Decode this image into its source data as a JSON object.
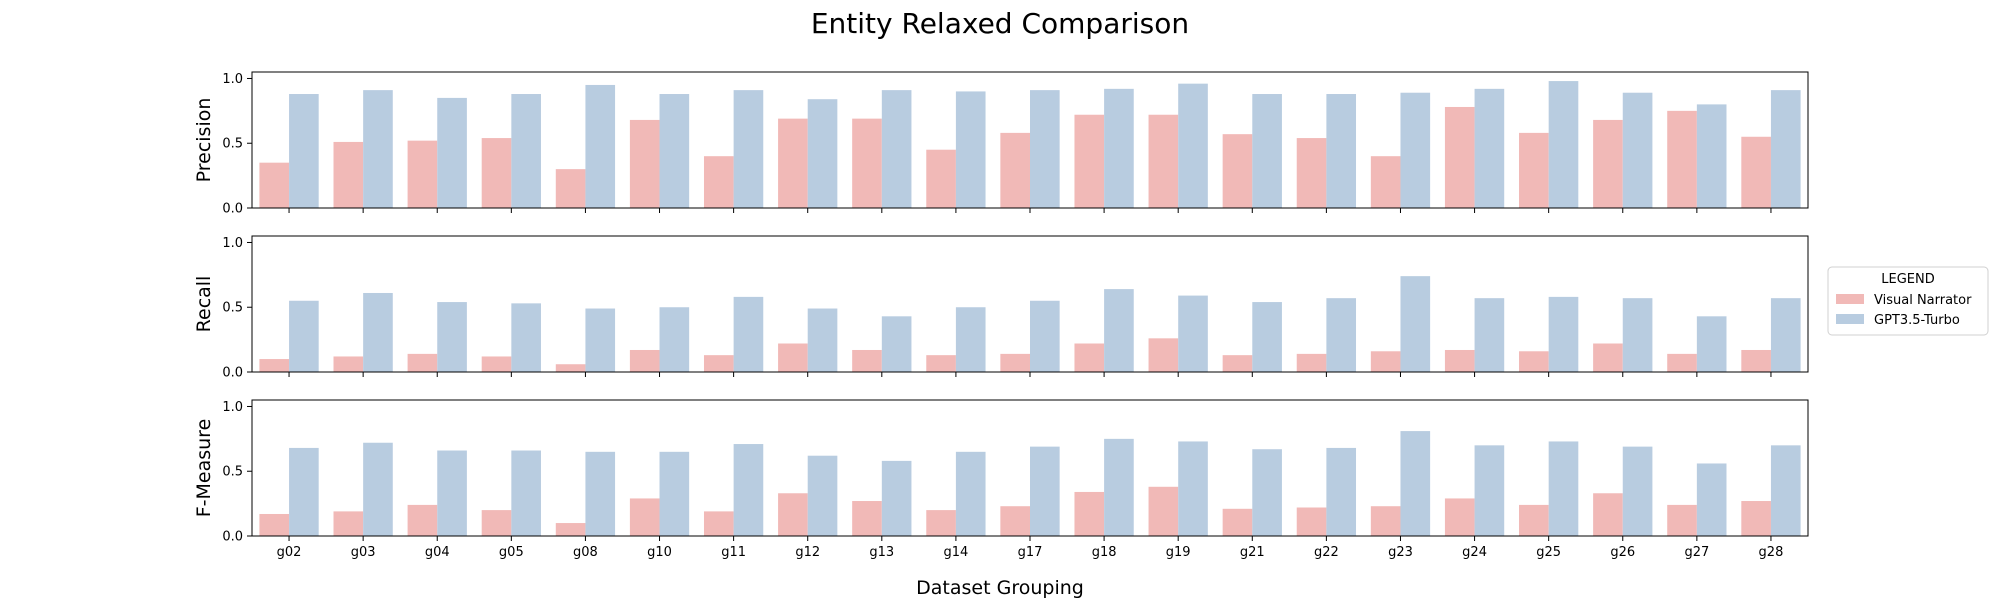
{
  "chart_data": {
    "type": "bar",
    "title": "Entity Relaxed Comparison",
    "xlabel": "Dataset Grouping",
    "categories": [
      "g02",
      "g03",
      "g04",
      "g05",
      "g08",
      "g10",
      "g11",
      "g12",
      "g13",
      "g14",
      "g17",
      "g18",
      "g19",
      "g21",
      "g22",
      "g23",
      "g24",
      "g25",
      "g26",
      "g27",
      "g28"
    ],
    "ylim": [
      0,
      1.05
    ],
    "yticks": [
      "0.0",
      "0.5",
      "1.0"
    ],
    "grid": false,
    "legend": {
      "title": "LEGEND",
      "placement": "right",
      "entries": [
        "Visual Narrator",
        "GPT3.5-Turbo"
      ]
    },
    "colors": {
      "Visual Narrator": "#f1b9b7",
      "GPT3.5-Turbo": "#b8cce0"
    },
    "panels": [
      {
        "ylabel": "Precision",
        "series": [
          {
            "name": "Visual Narrator",
            "values": [
              0.35,
              0.51,
              0.52,
              0.54,
              0.3,
              0.68,
              0.4,
              0.69,
              0.69,
              0.45,
              0.58,
              0.72,
              0.72,
              0.57,
              0.54,
              0.4,
              0.78,
              0.58,
              0.68,
              0.75,
              0.55
            ]
          },
          {
            "name": "GPT3.5-Turbo",
            "values": [
              0.88,
              0.91,
              0.85,
              0.88,
              0.95,
              0.88,
              0.91,
              0.84,
              0.91,
              0.9,
              0.91,
              0.92,
              0.96,
              0.88,
              0.88,
              0.89,
              0.92,
              0.98,
              0.89,
              0.8,
              0.91
            ]
          }
        ]
      },
      {
        "ylabel": "Recall",
        "series": [
          {
            "name": "Visual Narrator",
            "values": [
              0.1,
              0.12,
              0.14,
              0.12,
              0.06,
              0.17,
              0.13,
              0.22,
              0.17,
              0.13,
              0.14,
              0.22,
              0.26,
              0.13,
              0.14,
              0.16,
              0.17,
              0.16,
              0.22,
              0.14,
              0.17
            ]
          },
          {
            "name": "GPT3.5-Turbo",
            "values": [
              0.55,
              0.61,
              0.54,
              0.53,
              0.49,
              0.5,
              0.58,
              0.49,
              0.43,
              0.5,
              0.55,
              0.64,
              0.59,
              0.54,
              0.57,
              0.74,
              0.57,
              0.58,
              0.57,
              0.43,
              0.57
            ]
          }
        ]
      },
      {
        "ylabel": "F-Measure",
        "series": [
          {
            "name": "Visual Narrator",
            "values": [
              0.17,
              0.19,
              0.24,
              0.2,
              0.1,
              0.29,
              0.19,
              0.33,
              0.27,
              0.2,
              0.23,
              0.34,
              0.38,
              0.21,
              0.22,
              0.23,
              0.29,
              0.24,
              0.33,
              0.24,
              0.27
            ]
          },
          {
            "name": "GPT3.5-Turbo",
            "values": [
              0.68,
              0.72,
              0.66,
              0.66,
              0.65,
              0.65,
              0.71,
              0.62,
              0.58,
              0.65,
              0.69,
              0.75,
              0.73,
              0.67,
              0.68,
              0.81,
              0.7,
              0.73,
              0.69,
              0.56,
              0.7
            ]
          }
        ]
      }
    ]
  }
}
